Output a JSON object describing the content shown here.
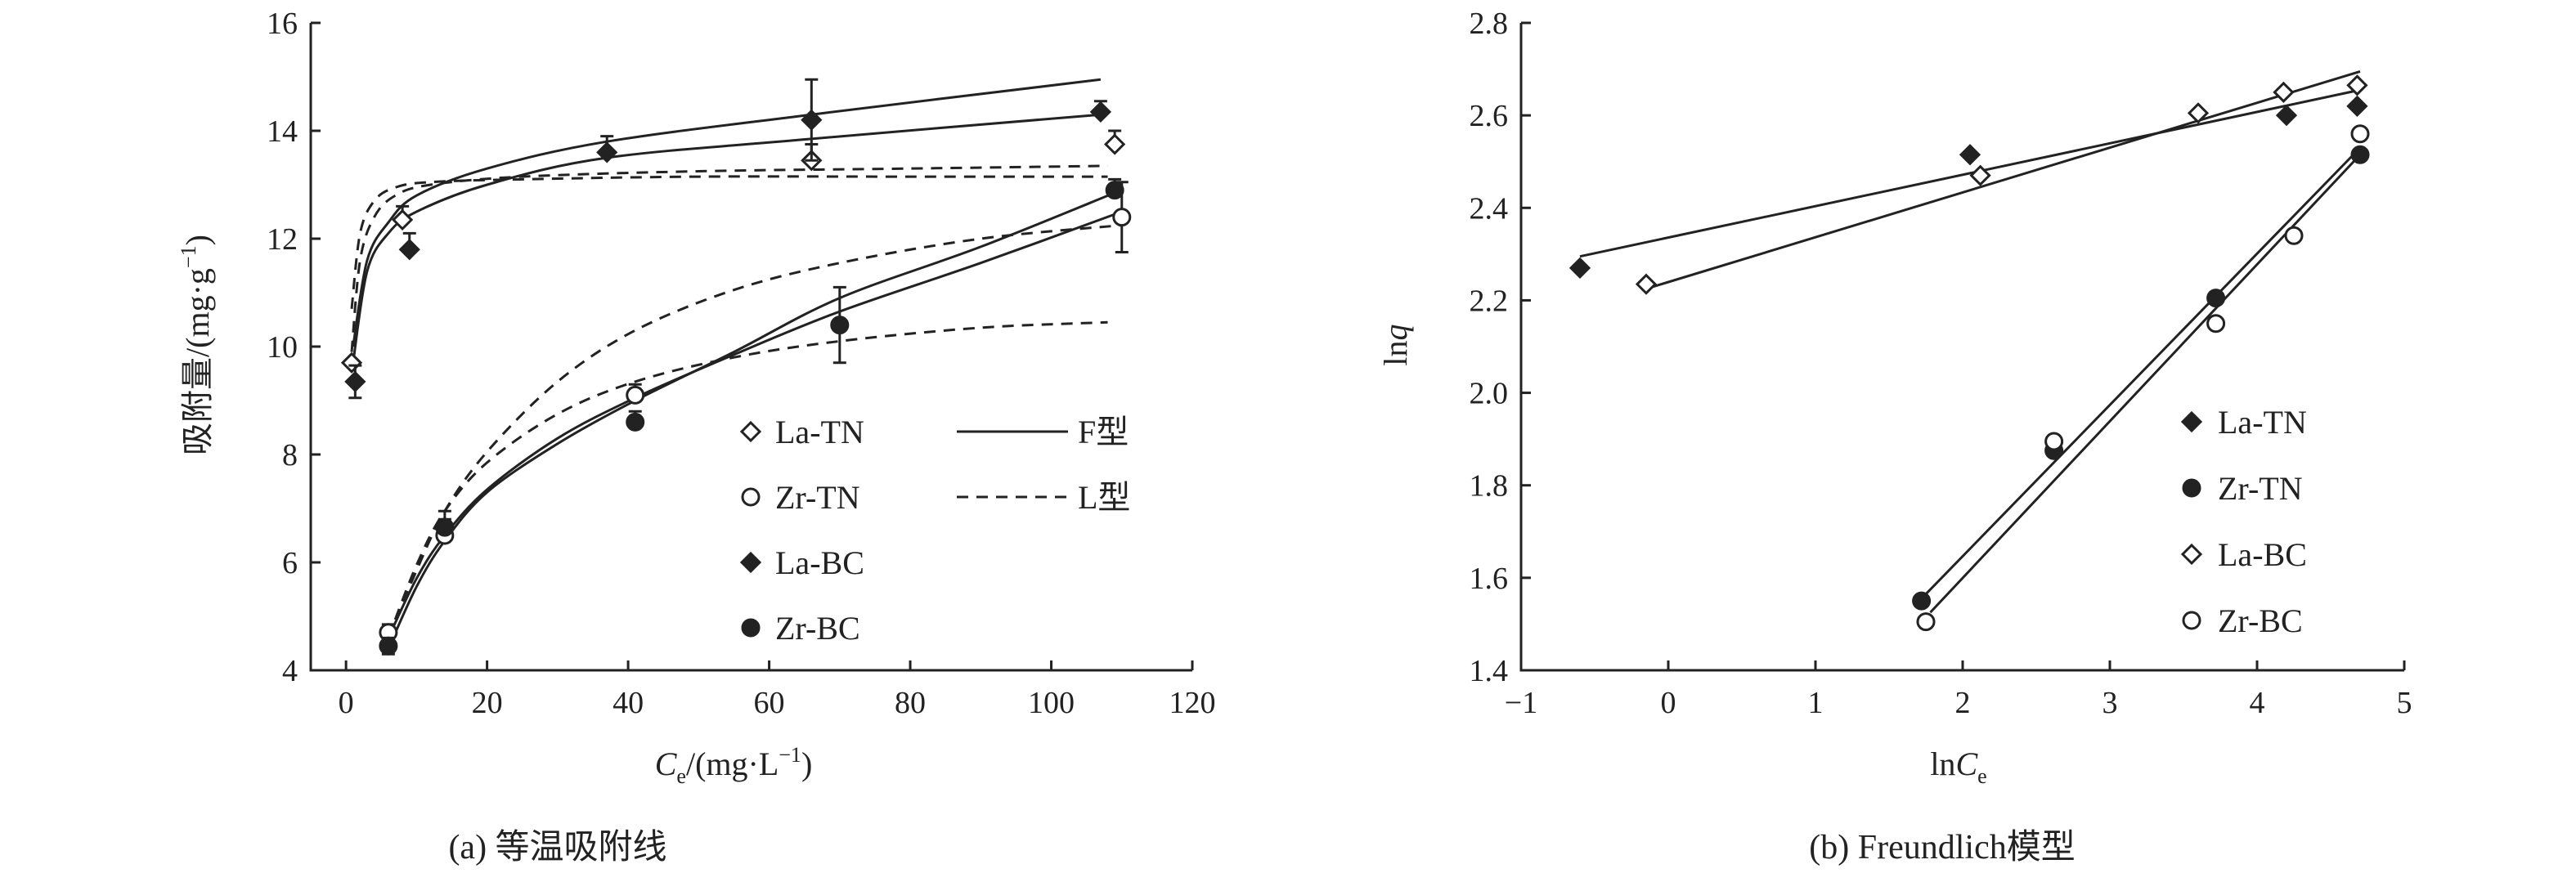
{
  "charts": [
    {
      "id": "a",
      "type": "scatter",
      "caption": "(a) 等温吸附线",
      "xlabel_main": "C",
      "xlabel_sub": "e",
      "xlabel_rest": "/(mg·L",
      "xlabel_sup": "−1",
      "xlabel_end": ")",
      "ylabel_main": "吸附量/(mg·g",
      "ylabel_sup": "−1",
      "ylabel_end": ")",
      "xlim": [
        -5,
        120
      ],
      "ylim": [
        4,
        16
      ],
      "xticks": [
        0,
        20,
        40,
        60,
        80,
        100,
        120
      ],
      "yticks": [
        4,
        6,
        8,
        10,
        12,
        14,
        16
      ],
      "xtick_labels": [
        "0",
        "20",
        "40",
        "60",
        "80",
        "100",
        "120"
      ],
      "ytick_labels": [
        "4",
        "6",
        "8",
        "10",
        "12",
        "14",
        "16"
      ],
      "legend": {
        "placement": "bottom-right",
        "markers": [
          {
            "label": "La-TN",
            "marker": "diamond-open"
          },
          {
            "label": "Zr-TN",
            "marker": "circle-open"
          },
          {
            "label": "La-BC",
            "marker": "diamond-filled"
          },
          {
            "label": "Zr-BC",
            "marker": "circle-filled"
          }
        ],
        "lines": [
          {
            "label": "F型",
            "style": "solid"
          },
          {
            "label": "L型",
            "style": "dashed"
          }
        ]
      },
      "series": [
        {
          "name": "La-TN",
          "marker": "diamond-open",
          "x": [
            0.8,
            8,
            66,
            109
          ],
          "y": [
            9.7,
            12.35,
            13.45,
            13.75
          ],
          "err": [
            0.0,
            0.25,
            0.3,
            0.25
          ]
        },
        {
          "name": "Zr-TN",
          "marker": "circle-open",
          "x": [
            6,
            14,
            41,
            110
          ],
          "y": [
            4.7,
            6.5,
            9.1,
            12.4
          ],
          "err": [
            0.15,
            0.3,
            0.2,
            0.65
          ]
        },
        {
          "name": "La-BC",
          "marker": "diamond-filled",
          "x": [
            1.3,
            9,
            37,
            66,
            107
          ],
          "y": [
            9.35,
            11.8,
            13.6,
            14.2,
            14.35
          ],
          "err": [
            0.3,
            0.3,
            0.3,
            0.75,
            0.2
          ]
        },
        {
          "name": "Zr-BC",
          "marker": "circle-filled",
          "x": [
            6,
            14,
            41,
            70,
            109
          ],
          "y": [
            4.45,
            6.65,
            8.6,
            10.4,
            12.9
          ],
          "err": [
            0.15,
            0.3,
            0.2,
            0.7,
            0.2
          ]
        }
      ],
      "fits": [
        {
          "for": "La-BC",
          "model": "F",
          "x": [
            1,
            3,
            6,
            10,
            20,
            37,
            66,
            107
          ],
          "y": [
            10.0,
            11.6,
            12.3,
            12.8,
            13.3,
            13.8,
            14.3,
            14.95
          ]
        },
        {
          "for": "La-TN",
          "model": "F",
          "x": [
            1,
            3,
            6,
            10,
            20,
            37,
            66,
            107
          ],
          "y": [
            9.7,
            11.4,
            12.1,
            12.5,
            13.0,
            13.5,
            13.85,
            14.3
          ]
        },
        {
          "for": "La-BC",
          "model": "L",
          "x": [
            0.8,
            2,
            4,
            7,
            12,
            25,
            50,
            80,
            108
          ],
          "y": [
            10.7,
            12.1,
            12.7,
            12.95,
            13.05,
            13.1,
            13.15,
            13.15,
            13.15
          ]
        },
        {
          "for": "La-TN",
          "model": "L",
          "x": [
            0.8,
            2,
            4,
            7,
            12,
            25,
            50,
            80,
            108
          ],
          "y": [
            9.9,
            11.6,
            12.4,
            12.8,
            13.0,
            13.15,
            13.25,
            13.3,
            13.35
          ]
        },
        {
          "for": "Zr-BC",
          "model": "F",
          "x": [
            6,
            10,
            14,
            20,
            30,
            41,
            55,
            70,
            90,
            109
          ],
          "y": [
            4.4,
            5.55,
            6.4,
            7.3,
            8.2,
            9.0,
            9.9,
            10.9,
            11.85,
            12.85
          ]
        },
        {
          "for": "Zr-TN",
          "model": "F",
          "x": [
            6,
            10,
            14,
            20,
            30,
            41,
            55,
            70,
            90,
            110
          ],
          "y": [
            4.6,
            5.7,
            6.5,
            7.35,
            8.3,
            9.05,
            9.85,
            10.65,
            11.55,
            12.5
          ]
        },
        {
          "for": "Zr-BC",
          "model": "L",
          "x": [
            6,
            10,
            14,
            20,
            30,
            41,
            55,
            70,
            90,
            108
          ],
          "y": [
            4.6,
            5.95,
            6.95,
            7.85,
            8.75,
            9.35,
            9.8,
            10.1,
            10.35,
            10.45
          ]
        },
        {
          "for": "Zr-TN",
          "model": "L",
          "x": [
            6,
            10,
            14,
            20,
            30,
            41,
            55,
            70,
            90,
            110
          ],
          "y": [
            4.6,
            5.85,
            6.95,
            8.05,
            9.35,
            10.3,
            11.05,
            11.55,
            12.0,
            12.25
          ]
        }
      ]
    },
    {
      "id": "b",
      "type": "scatter",
      "caption": "(b) Freundlich模型",
      "xlabel_main": "ln",
      "xlabel_it": "C",
      "xlabel_sub": "e",
      "ylabel_main": "ln",
      "ylabel_it": "q",
      "xlim": [
        -1,
        5
      ],
      "ylim": [
        1.4,
        2.8
      ],
      "xticks": [
        -1,
        0,
        1,
        2,
        3,
        4,
        5
      ],
      "yticks": [
        1.4,
        1.6,
        1.8,
        2.0,
        2.2,
        2.4,
        2.6,
        2.8
      ],
      "xtick_labels": [
        "−1",
        "0",
        "1",
        "2",
        "3",
        "4",
        "5"
      ],
      "ytick_labels": [
        "1.4",
        "1.6",
        "1.8",
        "2.0",
        "2.2",
        "2.4",
        "2.6",
        "2.8"
      ],
      "legend": {
        "placement": "bottom-right",
        "markers": [
          {
            "label": "La-TN",
            "marker": "diamond-filled"
          },
          {
            "label": "Zr-TN",
            "marker": "circle-filled"
          },
          {
            "label": "La-BC",
            "marker": "diamond-open"
          },
          {
            "label": "Zr-BC",
            "marker": "circle-open"
          }
        ]
      },
      "series": [
        {
          "name": "La-TN",
          "marker": "diamond-filled",
          "x": [
            -0.6,
            2.05,
            4.2,
            4.68
          ],
          "y": [
            2.27,
            2.515,
            2.6,
            2.62
          ]
        },
        {
          "name": "Zr-TN",
          "marker": "circle-filled",
          "x": [
            1.72,
            2.62,
            3.72,
            4.7
          ],
          "y": [
            1.55,
            1.875,
            2.205,
            2.515
          ]
        },
        {
          "name": "La-BC",
          "marker": "diamond-open",
          "x": [
            -0.15,
            2.12,
            3.6,
            4.18,
            4.68
          ],
          "y": [
            2.235,
            2.47,
            2.605,
            2.65,
            2.665
          ]
        },
        {
          "name": "Zr-BC",
          "marker": "circle-open",
          "x": [
            1.75,
            2.62,
            3.72,
            4.25,
            4.7
          ],
          "y": [
            1.505,
            1.895,
            2.15,
            2.34,
            2.56
          ]
        }
      ],
      "fits": [
        {
          "for": "La-TN",
          "x": [
            -0.6,
            4.7
          ],
          "y": [
            2.295,
            2.655
          ]
        },
        {
          "for": "La-BC",
          "x": [
            -0.15,
            4.7
          ],
          "y": [
            2.225,
            2.695
          ]
        },
        {
          "for": "Zr-TN",
          "x": [
            1.72,
            4.7
          ],
          "y": [
            1.555,
            2.53
          ]
        },
        {
          "for": "Zr-BC",
          "x": [
            1.78,
            4.7
          ],
          "y": [
            1.525,
            2.515
          ]
        }
      ]
    }
  ]
}
